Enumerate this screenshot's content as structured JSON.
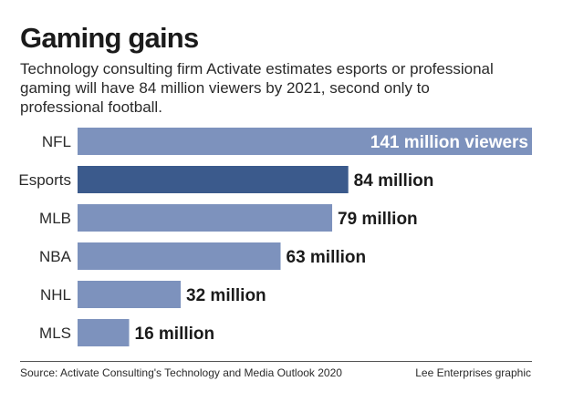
{
  "header": {
    "title": "Gaming gains",
    "subtitle": "Technology consulting firm Activate estimates esports or professional gaming will have 84 million viewers by 2021, second only to professional football."
  },
  "footer": {
    "source": "Source: Activate Consulting's Technology and Media Outlook 2020",
    "credit": "Lee Enterprises graphic"
  },
  "colors": {
    "bar": "#7d92bd",
    "highlight": "#3b5a8c"
  },
  "chart_data": {
    "type": "bar",
    "orientation": "horizontal",
    "categories": [
      "NFL",
      "Esports",
      "MLB",
      "NBA",
      "NHL",
      "MLS"
    ],
    "values": [
      141,
      84,
      79,
      63,
      32,
      16
    ],
    "value_labels": [
      "141 million viewers",
      "84 million",
      "79 million",
      "63 million",
      "32 million",
      "16 million"
    ],
    "highlight": "Esports",
    "title": "Gaming gains",
    "xlabel": "",
    "ylabel": "",
    "xlim": [
      0,
      141
    ],
    "grid": false,
    "legend": "none"
  }
}
